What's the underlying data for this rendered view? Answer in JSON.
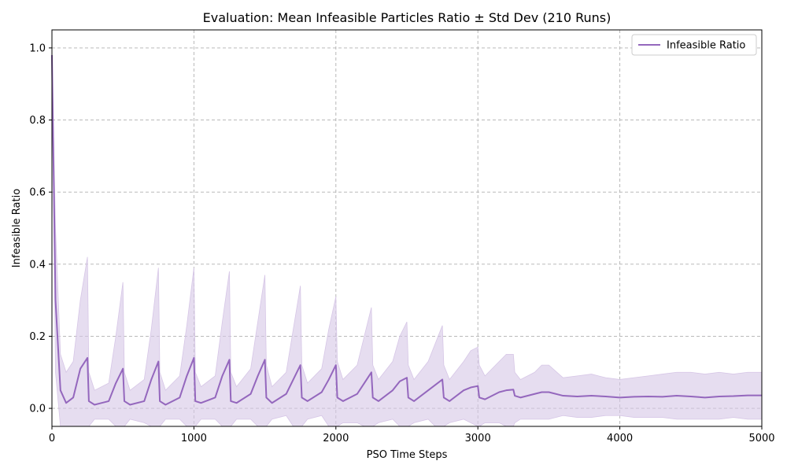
{
  "chart_data": {
    "type": "line",
    "title": "Evaluation: Mean Infeasible Particles Ratio ± Std Dev (210 Runs)",
    "xlabel": "PSO Time Steps",
    "ylabel": "Infeasible Ratio",
    "xlim": [
      0,
      5000
    ],
    "ylim": [
      -0.05,
      1.05
    ],
    "x_ticks": [
      "0",
      "1000",
      "2000",
      "3000",
      "4000",
      "5000"
    ],
    "y_ticks": [
      "0.0",
      "0.2",
      "0.4",
      "0.6",
      "0.8",
      "1.0"
    ],
    "grid": true,
    "legend_position": "top-right",
    "series": [
      {
        "name": "Infeasible Ratio",
        "color": "#9467bd",
        "band_color": "#d6c6e6",
        "x": [
          0,
          25,
          60,
          100,
          150,
          200,
          250,
          260,
          300,
          400,
          450,
          500,
          510,
          550,
          650,
          700,
          750,
          760,
          800,
          900,
          950,
          1000,
          1010,
          1050,
          1150,
          1200,
          1250,
          1260,
          1300,
          1400,
          1450,
          1500,
          1510,
          1550,
          1650,
          1700,
          1750,
          1760,
          1800,
          1900,
          1950,
          2000,
          2010,
          2050,
          2150,
          2200,
          2250,
          2260,
          2300,
          2400,
          2450,
          2500,
          2510,
          2550,
          2650,
          2700,
          2750,
          2760,
          2800,
          2900,
          2950,
          3000,
          3010,
          3050,
          3150,
          3200,
          3250,
          3260,
          3300,
          3400,
          3450,
          3500,
          3600,
          3700,
          3800,
          3900,
          4000,
          4100,
          4200,
          4300,
          4400,
          4500,
          4600,
          4700,
          4800,
          4900,
          5000
        ],
        "mean": [
          0.98,
          0.3,
          0.05,
          0.015,
          0.03,
          0.11,
          0.14,
          0.02,
          0.01,
          0.02,
          0.07,
          0.11,
          0.02,
          0.01,
          0.02,
          0.08,
          0.13,
          0.02,
          0.01,
          0.03,
          0.09,
          0.14,
          0.02,
          0.015,
          0.03,
          0.09,
          0.135,
          0.02,
          0.015,
          0.04,
          0.09,
          0.135,
          0.03,
          0.015,
          0.04,
          0.08,
          0.12,
          0.03,
          0.02,
          0.045,
          0.08,
          0.12,
          0.03,
          0.02,
          0.04,
          0.07,
          0.1,
          0.03,
          0.02,
          0.05,
          0.075,
          0.085,
          0.03,
          0.02,
          0.05,
          0.065,
          0.08,
          0.03,
          0.02,
          0.05,
          0.058,
          0.062,
          0.03,
          0.025,
          0.045,
          0.05,
          0.052,
          0.035,
          0.03,
          0.04,
          0.045,
          0.045,
          0.035,
          0.033,
          0.035,
          0.033,
          0.03,
          0.032,
          0.033,
          0.032,
          0.035,
          0.033,
          0.03,
          0.033,
          0.034,
          0.036,
          0.036
        ],
        "upper": [
          0.98,
          0.5,
          0.15,
          0.1,
          0.13,
          0.3,
          0.42,
          0.1,
          0.05,
          0.07,
          0.2,
          0.35,
          0.1,
          0.05,
          0.08,
          0.22,
          0.39,
          0.1,
          0.05,
          0.09,
          0.23,
          0.39,
          0.1,
          0.06,
          0.09,
          0.24,
          0.38,
          0.1,
          0.06,
          0.11,
          0.24,
          0.37,
          0.12,
          0.06,
          0.1,
          0.22,
          0.34,
          0.12,
          0.07,
          0.11,
          0.22,
          0.31,
          0.13,
          0.08,
          0.12,
          0.2,
          0.28,
          0.12,
          0.08,
          0.13,
          0.2,
          0.24,
          0.12,
          0.08,
          0.13,
          0.18,
          0.23,
          0.12,
          0.08,
          0.13,
          0.16,
          0.17,
          0.12,
          0.09,
          0.13,
          0.15,
          0.15,
          0.1,
          0.08,
          0.1,
          0.12,
          0.12,
          0.085,
          0.09,
          0.095,
          0.085,
          0.08,
          0.085,
          0.09,
          0.095,
          0.1,
          0.1,
          0.095,
          0.1,
          0.095,
          0.1,
          0.1
        ],
        "lower": [
          0.98,
          0.1,
          -0.05,
          -0.05,
          -0.05,
          -0.08,
          -0.14,
          -0.06,
          -0.03,
          -0.03,
          -0.06,
          -0.13,
          -0.06,
          -0.03,
          -0.04,
          -0.06,
          -0.13,
          -0.06,
          -0.03,
          -0.03,
          -0.05,
          -0.11,
          -0.06,
          -0.03,
          -0.03,
          -0.06,
          -0.11,
          -0.06,
          -0.03,
          -0.03,
          -0.06,
          -0.1,
          -0.06,
          -0.03,
          -0.02,
          -0.06,
          -0.1,
          -0.06,
          -0.03,
          -0.02,
          -0.06,
          -0.07,
          -0.06,
          -0.04,
          -0.04,
          -0.06,
          -0.08,
          -0.06,
          -0.04,
          -0.03,
          -0.05,
          -0.07,
          -0.06,
          -0.04,
          -0.03,
          -0.05,
          -0.07,
          -0.06,
          -0.04,
          -0.03,
          -0.04,
          -0.05,
          -0.06,
          -0.04,
          -0.04,
          -0.05,
          -0.05,
          -0.04,
          -0.03,
          -0.03,
          -0.03,
          -0.03,
          -0.02,
          -0.025,
          -0.025,
          -0.02,
          -0.02,
          -0.025,
          -0.025,
          -0.025,
          -0.03,
          -0.03,
          -0.03,
          -0.03,
          -0.025,
          -0.03,
          -0.03
        ]
      }
    ]
  }
}
